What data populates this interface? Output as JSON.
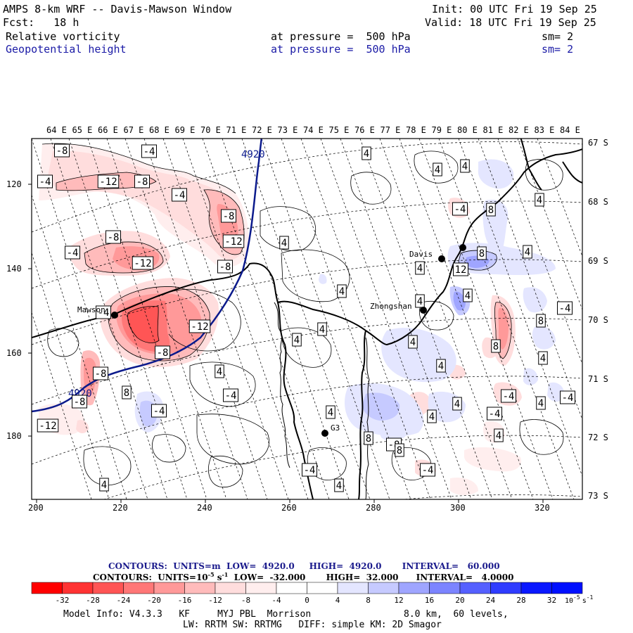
{
  "header": {
    "title": "AMPS 8-km WRF -- Davis-Mawson Window",
    "init": "Init: 00 UTC Fri 19 Sep 25",
    "fcst": "Fcst:   18 h",
    "valid": "Valid: 18 UTC Fri 19 Sep 25",
    "field1_name": "Relative vorticity",
    "field1_level": "at pressure =  500 hPa",
    "field1_sm": "sm= 2",
    "field2_name": "Geopotential height",
    "field2_level": "at pressure =  500 hPa",
    "field2_sm": "sm= 2"
  },
  "map": {
    "top_longitudes": [
      "64 E",
      "65 E",
      "66 E",
      "67 E",
      "68 E",
      "69 E",
      "70 E",
      "71 E",
      "72 E",
      "73 E",
      "74 E",
      "75 E",
      "76 E",
      "77 E",
      "78 E",
      "79 E",
      "80 E",
      "81 E",
      "82 E",
      "83 E",
      "84 E"
    ],
    "right_latitudes": [
      "67 S",
      "68 S",
      "69 S",
      "70 S",
      "71 S",
      "72 S",
      "73 S"
    ],
    "left_ticks": [
      "120",
      "140",
      "160",
      "180"
    ],
    "bottom_ticks": [
      "200",
      "220",
      "240",
      "260",
      "280",
      "300",
      "320"
    ],
    "stations": [
      {
        "name": "Mawson"
      },
      {
        "name": "Davis"
      },
      {
        "name": "Zhongshan"
      },
      {
        "name": "G3"
      }
    ],
    "height_contour_label": "4920",
    "vorticity_labels": [
      "-8",
      "-4",
      "-4",
      "-12",
      "-8",
      "-4",
      "-8",
      "-12",
      "-8",
      "-4",
      "-12",
      "-8",
      "-4",
      "-12",
      "-8",
      "-8",
      "-8",
      "-12",
      "-4",
      "8",
      "-4",
      "4",
      "4",
      "4",
      "4",
      "4",
      "4",
      "4",
      "4",
      "4",
      "-4",
      "8",
      "4",
      "4",
      "8",
      "4",
      "8",
      "-4",
      "8",
      "4",
      "4",
      "8",
      "4",
      "-8",
      "-4",
      "4",
      "-4",
      "-4",
      "4",
      "-4",
      "4",
      "4",
      "8",
      "4",
      "-4",
      "4",
      "4",
      "12",
      "4"
    ]
  },
  "contour_info": {
    "line1_label": "CONTOURS:  UNITS=m",
    "line1_low": "LOW=  4920.0",
    "line1_high": "HIGH=  4920.0",
    "line1_interval": "INTERVAL=   60.000",
    "line2_label": "CONTOURS:  UNITS=10",
    "line2_exp": "-5",
    "line2_unit": " s",
    "line2_unit_exp": "-1",
    "line2_low": "LOW=  -32.000",
    "line2_high": "HIGH=  32.000",
    "line2_interval": "INTERVAL=   4.0000"
  },
  "colorbar": {
    "labels": [
      "-32",
      "-28",
      "-24",
      "-20",
      "-16",
      "-12",
      "-8",
      "-4",
      "0",
      "4",
      "8",
      "12",
      "16",
      "20",
      "24",
      "28",
      "32"
    ],
    "unit": "10",
    "unit_exp": "-5",
    "unit_s": "s",
    "unit_s_exp": "-1",
    "colors": [
      "#ff0000",
      "#ff3333",
      "#ff5555",
      "#ff7777",
      "#ff9999",
      "#ffbbbb",
      "#ffdddd",
      "#ffeeee",
      "#ffffff",
      "#ffffff",
      "#e4e6ff",
      "#c6caff",
      "#9fa5ff",
      "#7c84ff",
      "#5560ff",
      "#2f3cff",
      "#0a18ff"
    ]
  },
  "footer": {
    "model_info": "Model Info: V4.3.3   KF     MYJ PBL  Morrison",
    "resolution": "8.0 km,  60 levels,",
    "physics": "LW: RRTM SW: RRTMG   DIFF: simple KM: 2D Smagor"
  }
}
